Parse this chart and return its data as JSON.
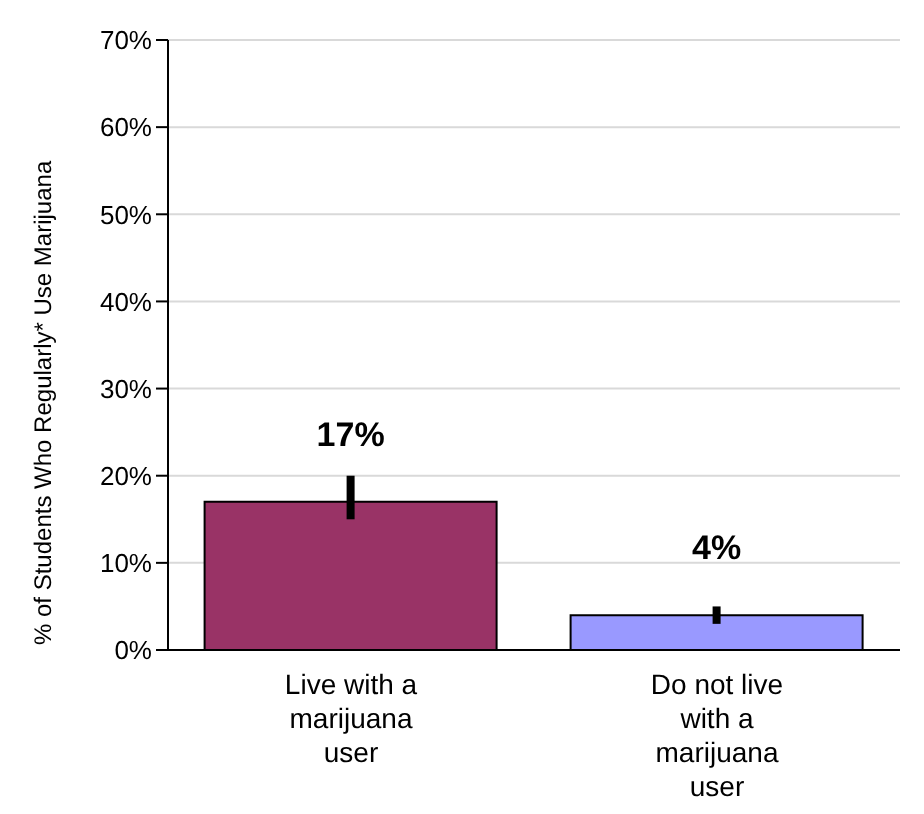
{
  "chart_data": {
    "type": "bar",
    "ylabel": "% of Students Who Regularly* Use Marijuana",
    "categories": [
      "Live with a marijuana user",
      "Do not live with a marijuana user"
    ],
    "values": [
      17,
      4
    ],
    "colors": [
      "#993366",
      "#9999ff"
    ],
    "errors": [
      [
        15,
        20
      ],
      [
        3,
        5
      ]
    ],
    "value_labels": [
      "17%",
      "4%"
    ],
    "ylim": [
      0,
      70
    ],
    "yticks": [
      {
        "value": 0,
        "label": "0%"
      },
      {
        "value": 10,
        "label": "10%"
      },
      {
        "value": 20,
        "label": "20%"
      },
      {
        "value": 30,
        "label": "30%"
      },
      {
        "value": 40,
        "label": "40%"
      },
      {
        "value": 50,
        "label": "50%"
      },
      {
        "value": 60,
        "label": "60%"
      },
      {
        "value": 70,
        "label": "70%"
      }
    ],
    "grid": "y",
    "legend": false
  }
}
